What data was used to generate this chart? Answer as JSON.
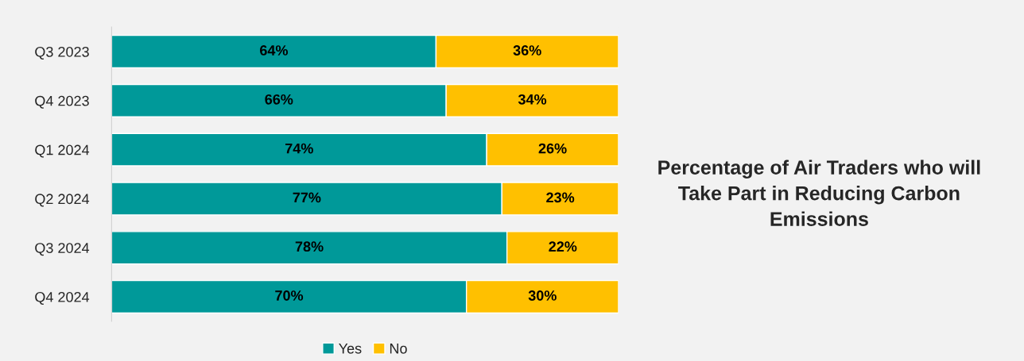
{
  "chart_data": {
    "type": "bar",
    "orientation": "horizontal",
    "stacked": true,
    "title": "Percentage of Air Traders who will Take Part in Reducing Carbon Emissions",
    "categories": [
      "Q3 2023",
      "Q4 2023",
      "Q1 2024",
      "Q2 2024",
      "Q3 2024",
      "Q4 2024"
    ],
    "series": [
      {
        "name": "Yes",
        "color": "#009999",
        "values": [
          64,
          66,
          74,
          77,
          78,
          70
        ],
        "value_labels": [
          "64%",
          "66%",
          "74%",
          "77%",
          "78%",
          "70%"
        ]
      },
      {
        "name": "No",
        "color": "#ffc000",
        "values": [
          36,
          34,
          26,
          23,
          22,
          30
        ],
        "value_labels": [
          "36%",
          "34%",
          "26%",
          "23%",
          "22%",
          "30%"
        ]
      }
    ],
    "xlim": [
      0,
      100
    ],
    "tick_labels": "y",
    "legend": "bottom"
  }
}
